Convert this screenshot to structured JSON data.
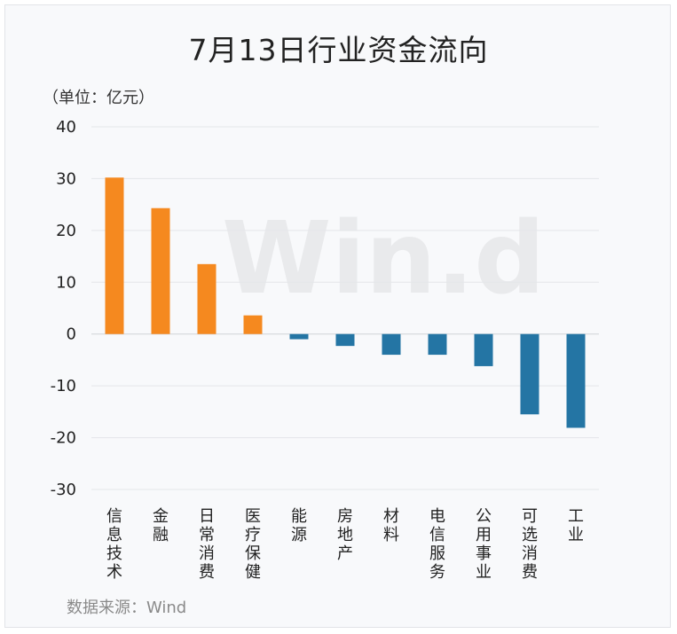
{
  "title": "7月13日行业资金流向",
  "unit_label": "（单位：亿元）",
  "source_label": "数据来源：Wind",
  "watermark": "Win.d",
  "colors": {
    "positive": "#f5891f",
    "negative": "#2475a4",
    "grid": "#e4e6ea",
    "axis": "#222222"
  },
  "chart_data": {
    "type": "bar",
    "title": "7月13日行业资金流向",
    "ylabel": "亿元",
    "ylim": [
      -30,
      40
    ],
    "yticks": [
      40,
      30,
      20,
      10,
      0,
      -10,
      -20,
      -30
    ],
    "grid": true,
    "categories": [
      "信息技术",
      "金融",
      "日常消费",
      "医疗保健",
      "能源",
      "房地产",
      "材料",
      "电信服务",
      "公用事业",
      "可选消费",
      "工业"
    ],
    "values": [
      30.2,
      24.3,
      13.5,
      3.6,
      -1.0,
      -2.3,
      -4.0,
      -4.0,
      -6.2,
      -15.5,
      -18.1
    ]
  }
}
